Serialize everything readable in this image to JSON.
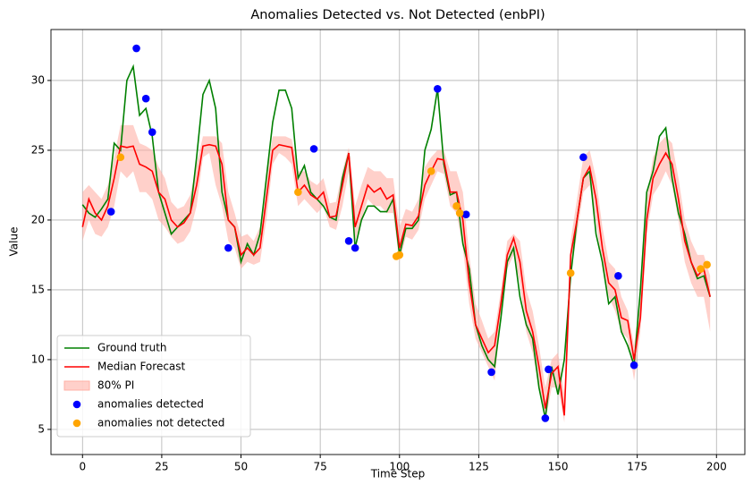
{
  "chart_data": {
    "type": "line",
    "title": "Anomalies Detected vs. Not Detected  (enbPI)",
    "x_label": "Time Step",
    "y_label": "Value",
    "xlim": [
      -9.95,
      208.95
    ],
    "ylim": [
      3.2,
      33.65
    ],
    "xticks": [
      0,
      25,
      50,
      75,
      100,
      125,
      150,
      175,
      200
    ],
    "yticks": [
      5,
      10,
      15,
      20,
      25,
      30
    ],
    "grid": true,
    "legend": "lower left",
    "x": [
      0,
      2,
      4,
      6,
      8,
      10,
      12,
      14,
      16,
      18,
      20,
      22,
      24,
      26,
      28,
      30,
      32,
      34,
      36,
      38,
      40,
      42,
      44,
      46,
      48,
      50,
      52,
      54,
      56,
      58,
      60,
      62,
      64,
      66,
      68,
      70,
      72,
      74,
      76,
      78,
      80,
      82,
      84,
      86,
      88,
      90,
      92,
      94,
      96,
      98,
      100,
      102,
      104,
      106,
      108,
      110,
      112,
      114,
      116,
      118,
      120,
      122,
      124,
      126,
      128,
      130,
      132,
      134,
      136,
      138,
      140,
      142,
      144,
      146,
      148,
      150,
      152,
      154,
      156,
      158,
      160,
      162,
      164,
      166,
      168,
      170,
      172,
      174,
      176,
      178,
      180,
      182,
      184,
      186,
      188,
      190,
      192,
      194,
      196,
      198
    ],
    "series": [
      {
        "name": "Ground truth",
        "color": "#008000",
        "values": [
          21.1,
          20.5,
          20.2,
          20.8,
          21.5,
          25.5,
          25.0,
          30.0,
          31.0,
          27.5,
          28.0,
          26.0,
          22.0,
          20.5,
          19.0,
          19.5,
          20.0,
          20.5,
          24.5,
          29.0,
          30.0,
          28.0,
          22.0,
          20.0,
          19.5,
          17.0,
          18.3,
          17.5,
          19.0,
          23.0,
          27.0,
          29.3,
          29.3,
          28.0,
          23.0,
          23.9,
          22.0,
          21.5,
          21.0,
          20.2,
          20.0,
          23.0,
          24.8,
          18.0,
          20.0,
          21.0,
          21.0,
          20.6,
          20.6,
          21.5,
          17.5,
          19.4,
          19.4,
          20.0,
          25.0,
          26.5,
          29.4,
          24.0,
          21.8,
          22.0,
          18.3,
          16.5,
          12.5,
          11.0,
          10.0,
          9.5,
          13.0,
          17.0,
          18.0,
          14.5,
          12.5,
          11.5,
          8.0,
          5.8,
          9.5,
          7.5,
          10.0,
          16.0,
          20.0,
          23.0,
          23.5,
          19.0,
          17.0,
          14.0,
          14.5,
          12.0,
          11.0,
          9.6,
          15.0,
          22.0,
          23.5,
          26.0,
          26.6,
          23.0,
          20.5,
          19.0,
          17.0,
          15.8,
          16.0,
          14.5
        ]
      },
      {
        "name": "Median Forecast",
        "color": "#ff0000",
        "values": [
          19.5,
          21.5,
          20.5,
          20.0,
          21.0,
          23.0,
          25.3,
          25.2,
          25.3,
          24.0,
          23.8,
          23.5,
          22.0,
          21.5,
          20.0,
          19.5,
          19.8,
          20.5,
          22.5,
          25.3,
          25.4,
          25.3,
          24.0,
          20.0,
          19.5,
          17.5,
          18.0,
          17.5,
          18.0,
          21.5,
          25.0,
          25.4,
          25.3,
          25.2,
          22.0,
          22.5,
          21.8,
          21.5,
          22.0,
          20.2,
          20.3,
          22.5,
          24.8,
          19.5,
          21.0,
          22.5,
          22.0,
          22.3,
          21.5,
          21.8,
          18.0,
          19.7,
          19.6,
          20.3,
          22.5,
          23.5,
          24.4,
          24.3,
          22.0,
          22.0,
          20.0,
          15.5,
          12.5,
          11.5,
          10.5,
          11.0,
          14.0,
          17.5,
          18.7,
          17.0,
          13.5,
          12.0,
          9.5,
          6.5,
          9.0,
          9.5,
          6.0,
          17.5,
          20.0,
          23.0,
          23.8,
          21.5,
          18.0,
          15.5,
          15.0,
          13.0,
          12.8,
          10.0,
          13.0,
          20.0,
          23.0,
          24.0,
          24.8,
          24.0,
          21.5,
          18.5,
          17.0,
          16.0,
          16.5,
          14.5
        ]
      }
    ],
    "band": {
      "name": "80% PI",
      "color": "#ffb0a6",
      "upper": [
        22.0,
        22.5,
        22.0,
        21.5,
        22.5,
        24.5,
        26.8,
        26.8,
        26.8,
        25.5,
        25.3,
        25.0,
        23.8,
        23.0,
        21.3,
        20.8,
        21.0,
        21.8,
        24.0,
        26.0,
        26.0,
        26.0,
        25.5,
        22.0,
        20.5,
        18.8,
        19.0,
        18.5,
        19.5,
        23.0,
        26.0,
        26.0,
        26.0,
        25.8,
        23.5,
        23.5,
        22.8,
        22.5,
        23.0,
        21.2,
        21.3,
        23.5,
        25.2,
        21.0,
        22.5,
        23.8,
        23.5,
        23.5,
        23.0,
        23.0,
        19.5,
        20.8,
        20.6,
        21.5,
        23.8,
        24.5,
        25.0,
        25.0,
        23.5,
        23.5,
        22.0,
        17.5,
        14.0,
        12.8,
        11.5,
        12.0,
        15.0,
        18.5,
        19.0,
        18.5,
        15.0,
        13.5,
        11.0,
        8.0,
        10.0,
        10.5,
        7.5,
        18.5,
        21.5,
        24.5,
        25.0,
        23.0,
        19.5,
        17.0,
        16.5,
        14.5,
        13.5,
        11.0,
        14.5,
        21.5,
        24.5,
        25.5,
        26.0,
        25.5,
        23.0,
        20.0,
        18.5,
        17.5,
        17.5,
        16.0
      ],
      "lower": [
        18.5,
        20.0,
        19.0,
        18.8,
        19.5,
        21.0,
        23.5,
        23.0,
        23.5,
        22.0,
        22.0,
        21.5,
        20.0,
        19.5,
        18.8,
        18.3,
        18.5,
        19.2,
        21.0,
        24.5,
        24.8,
        22.5,
        21.0,
        18.5,
        18.0,
        16.5,
        17.0,
        16.8,
        17.0,
        20.0,
        24.0,
        24.8,
        24.5,
        24.0,
        21.0,
        21.5,
        21.0,
        20.5,
        21.0,
        19.5,
        19.3,
        21.0,
        23.5,
        18.5,
        20.0,
        21.5,
        21.0,
        21.0,
        20.5,
        20.5,
        17.0,
        18.8,
        18.6,
        19.3,
        21.5,
        22.5,
        23.5,
        23.3,
        21.0,
        20.5,
        18.0,
        14.0,
        11.5,
        10.5,
        9.5,
        8.5,
        13.0,
        16.5,
        17.5,
        15.5,
        12.0,
        10.5,
        8.0,
        5.5,
        8.0,
        8.0,
        5.5,
        16.0,
        19.0,
        22.0,
        22.5,
        20.0,
        16.5,
        14.5,
        13.5,
        12.0,
        11.5,
        8.5,
        12.0,
        19.0,
        21.8,
        22.5,
        23.5,
        22.5,
        20.0,
        17.0,
        15.5,
        14.5,
        14.5,
        12.0
      ]
    },
    "scatter": [
      {
        "name": "anomalies detected",
        "color": "#0000ff",
        "x": [
          9,
          17,
          20,
          22,
          46,
          73,
          84,
          86,
          112,
          121,
          129,
          146,
          147,
          158,
          169,
          174
        ],
        "y": [
          20.6,
          32.3,
          28.7,
          26.3,
          18.0,
          25.1,
          18.5,
          18.0,
          29.4,
          20.4,
          9.1,
          5.8,
          9.3,
          24.5,
          16.0,
          9.6
        ]
      },
      {
        "name": "anomalies not detected",
        "color": "#ffa500",
        "x": [
          12,
          68,
          99,
          100,
          110,
          118,
          119,
          154,
          195,
          197
        ],
        "y": [
          24.5,
          22.0,
          17.4,
          17.5,
          23.5,
          21.0,
          20.5,
          16.2,
          16.5,
          16.8
        ]
      }
    ]
  }
}
